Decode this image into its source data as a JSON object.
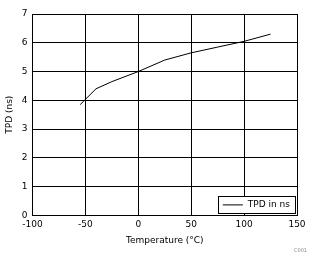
{
  "chart_data": {
    "type": "line",
    "x_label": "Temperature (°C)",
    "y_label": "TPD (ns)",
    "x": [
      -55,
      -40,
      -25,
      0,
      25,
      50,
      75,
      100,
      125
    ],
    "series": [
      {
        "name": "TPD in ns",
        "color": "#000000",
        "values": [
          3.85,
          4.4,
          4.65,
          5.0,
          5.4,
          5.65,
          5.85,
          6.05,
          6.3
        ]
      }
    ],
    "xlim": [
      -100,
      150
    ],
    "xticks": [
      -100,
      -50,
      0,
      50,
      100,
      150
    ],
    "ylim": [
      0,
      7
    ],
    "yticks": [
      0,
      1,
      2,
      3,
      4,
      5,
      6,
      7
    ],
    "grid": true,
    "legend": "lower right",
    "annotation": "C001"
  }
}
